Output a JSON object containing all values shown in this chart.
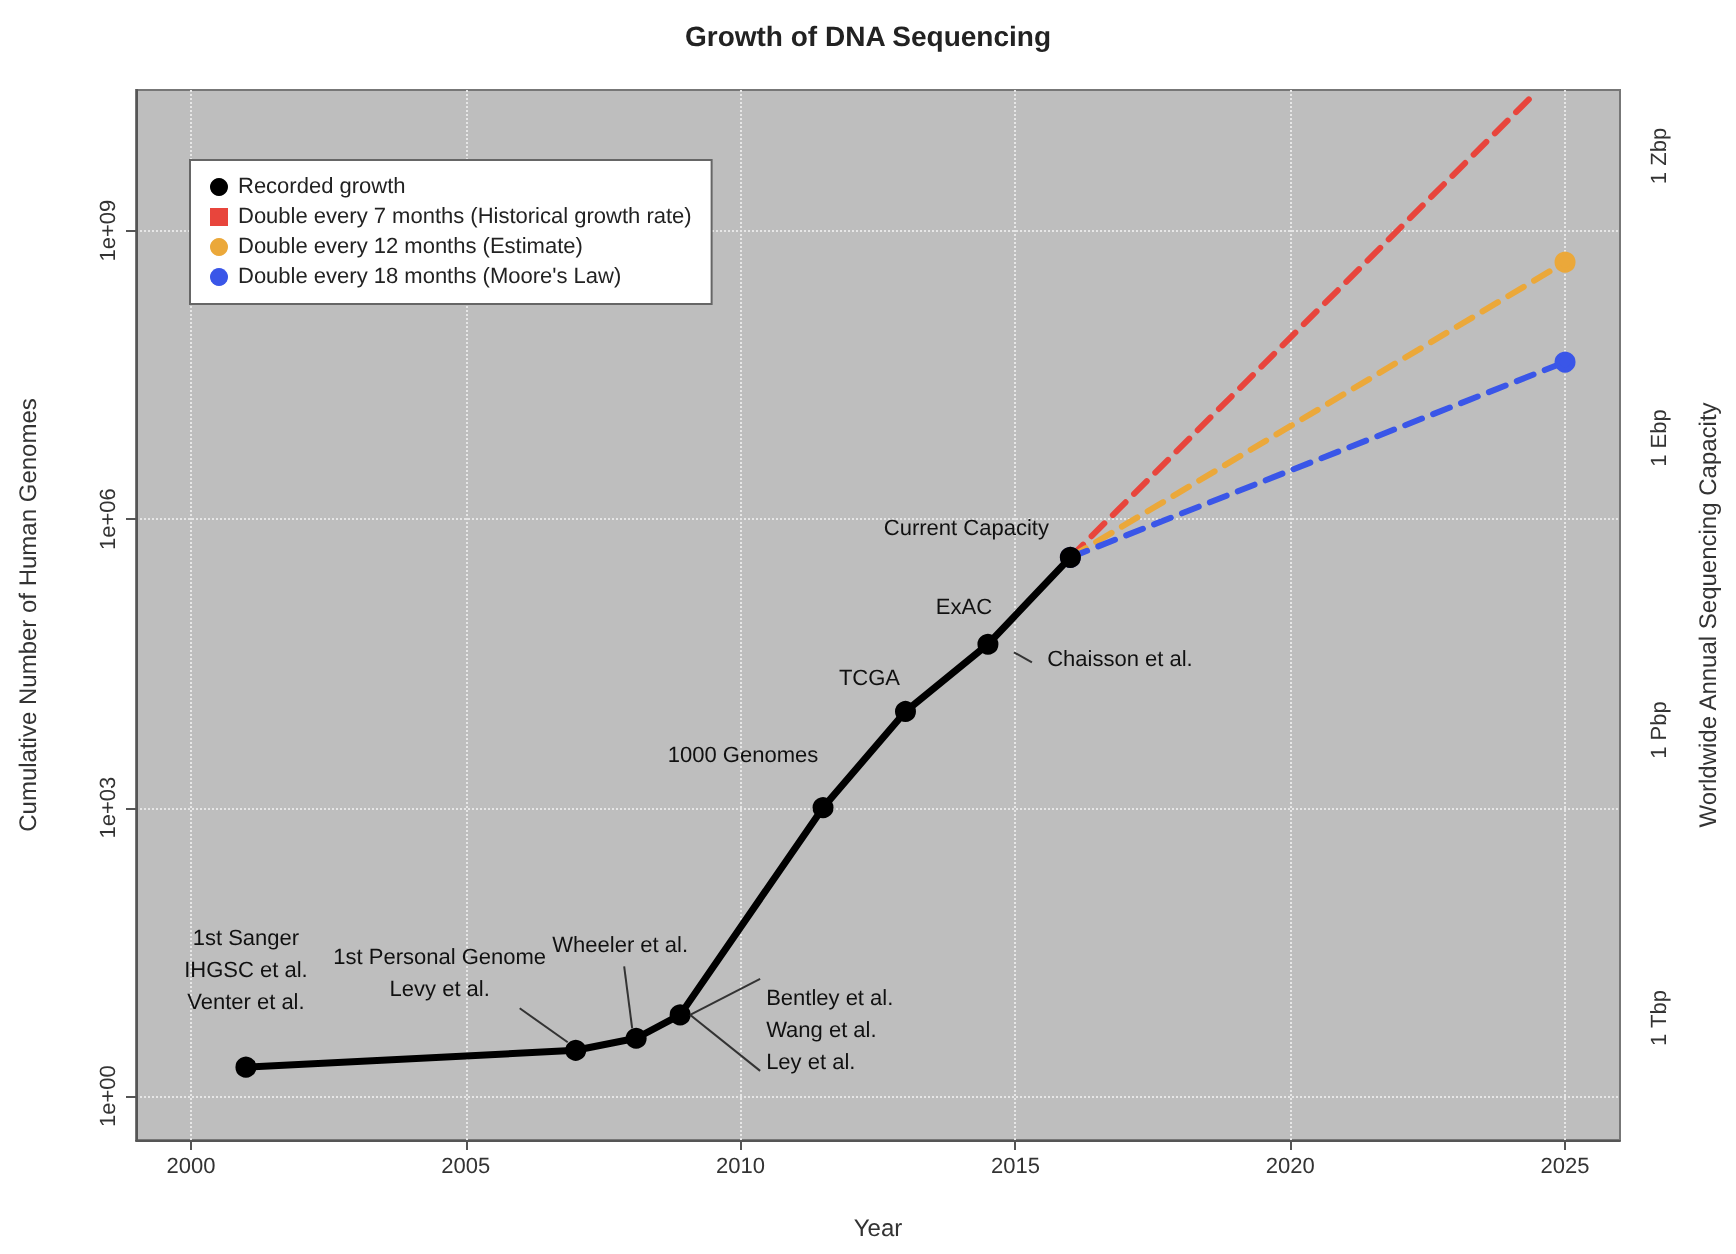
{
  "chart_data": {
    "type": "line",
    "title": "Growth of DNA Sequencing",
    "xlabel": "Year",
    "ylabel": "Cumulative Number of Human Genomes",
    "y2label": "Worldwide Annual Sequencing Capacity",
    "xlim": [
      1999,
      2026
    ],
    "xticks": [
      2000,
      2005,
      2010,
      2015,
      2020,
      2025
    ],
    "ylim": [
      0.35,
      29000000000
    ],
    "yticks": [
      {
        "value": 1,
        "label": "1e+00"
      },
      {
        "value": 1000,
        "label": "1e+03"
      },
      {
        "value": 1000000,
        "label": "1e+06"
      },
      {
        "value": 1000000000,
        "label": "1e+09"
      }
    ],
    "log": "y",
    "grid": true,
    "legend": "top left",
    "series": [
      {
        "name": "Recorded growth",
        "color": "#000000",
        "marker": "circle",
        "line_style": "solid",
        "x": [
          2001,
          2007,
          2008.1,
          2008.9,
          2011.5,
          2013,
          2014.5,
          2016
        ],
        "values": [
          2,
          3,
          4,
          7,
          1000,
          10000,
          50000,
          400000
        ]
      },
      {
        "name": "Double every 7 months (Historical growth rate)",
        "color": "#e8453c",
        "marker": "none",
        "line_style": "dashed",
        "x": [
          2016,
          2024.4
        ],
        "values": [
          400000,
          25000000000
        ]
      },
      {
        "name": "Double every 12 months (Estimate)",
        "color": "#eba83a",
        "marker": "circle",
        "line_style": "dashed",
        "x": [
          2016,
          2025
        ],
        "values": [
          400000,
          470000000
        ]
      },
      {
        "name": "Double every 18 months (Moore's Law)",
        "color": "#3a56e8",
        "marker": "circle",
        "line_style": "dashed",
        "x": [
          2016,
          2025
        ],
        "values": [
          400000,
          43000000
        ]
      }
    ],
    "annotations": [
      {
        "text": "1st Sanger\nIHGSC et al.\nVenter et al.",
        "x": 2001,
        "y": 2
      },
      {
        "text": "1st Personal Genome\nLevy et al.",
        "x": 2007,
        "y": 3
      },
      {
        "text": "Wheeler et al.",
        "x": 2008.1,
        "y": 4
      },
      {
        "text": "Bentley et al.\nWang et al.\nLey et al.",
        "x": 2008.9,
        "y": 7
      },
      {
        "text": "1000 Genomes",
        "x": 2011.5,
        "y": 1000
      },
      {
        "text": "TCGA",
        "x": 2013,
        "y": 10000
      },
      {
        "text": "ExAC",
        "x": 2014.5,
        "y": 50000
      },
      {
        "text": "Chaisson et al.",
        "x": 2014.5,
        "y": 50000
      },
      {
        "text": "Current Capacity",
        "x": 2016,
        "y": 400000
      },
      "1 Tbp",
      "1 Pbp",
      "1 Ebp",
      "1 Zbp"
    ]
  }
}
